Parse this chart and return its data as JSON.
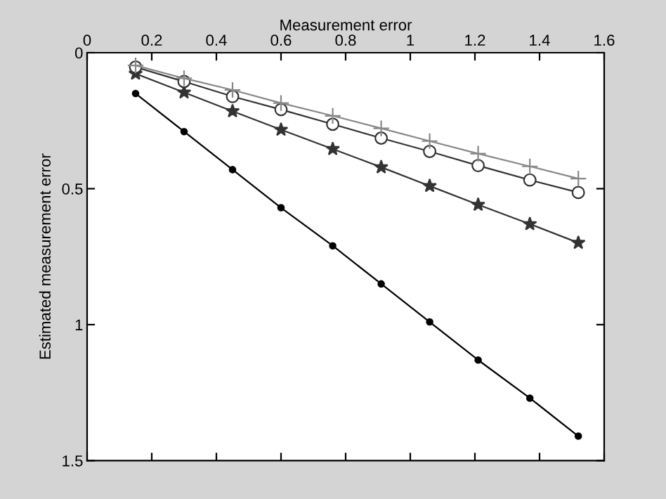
{
  "chart_data": {
    "type": "line",
    "xlabel": "Measurement error",
    "ylabel": "Estimated measurement error",
    "xlim": [
      0,
      1.6
    ],
    "xticks": [
      0,
      0.2,
      0.4,
      0.6,
      0.8,
      1,
      1.2,
      1.4,
      1.6
    ],
    "ylim": [
      1.5,
      0
    ],
    "yticks": [
      0,
      0.5,
      1,
      1.5
    ],
    "x": [
      0.15,
      0.3,
      0.45,
      0.6,
      0.76,
      0.91,
      1.06,
      1.21,
      1.37,
      1.52
    ],
    "grid": false,
    "legend": false,
    "line_style": "solid",
    "series": [
      {
        "color": "#000000",
        "marker": "circle",
        "values": [
          0.15,
          0.29,
          0.43,
          0.57,
          0.71,
          0.85,
          0.99,
          1.13,
          1.27,
          1.41
        ]
      },
      {
        "color": "#333333",
        "marker": "star",
        "values": [
          0.077,
          0.146,
          0.215,
          0.283,
          0.354,
          0.421,
          0.49,
          0.559,
          0.63,
          0.699
        ]
      },
      {
        "color": "#333333",
        "marker": "circle_open",
        "values": [
          0.053,
          0.106,
          0.161,
          0.209,
          0.263,
          0.314,
          0.363,
          0.415,
          0.468,
          0.514
        ]
      },
      {
        "color": "#888888",
        "marker": "cross",
        "values": [
          0.047,
          0.094,
          0.137,
          0.185,
          0.232,
          0.278,
          0.325,
          0.371,
          0.418,
          0.463
        ]
      }
    ]
  }
}
